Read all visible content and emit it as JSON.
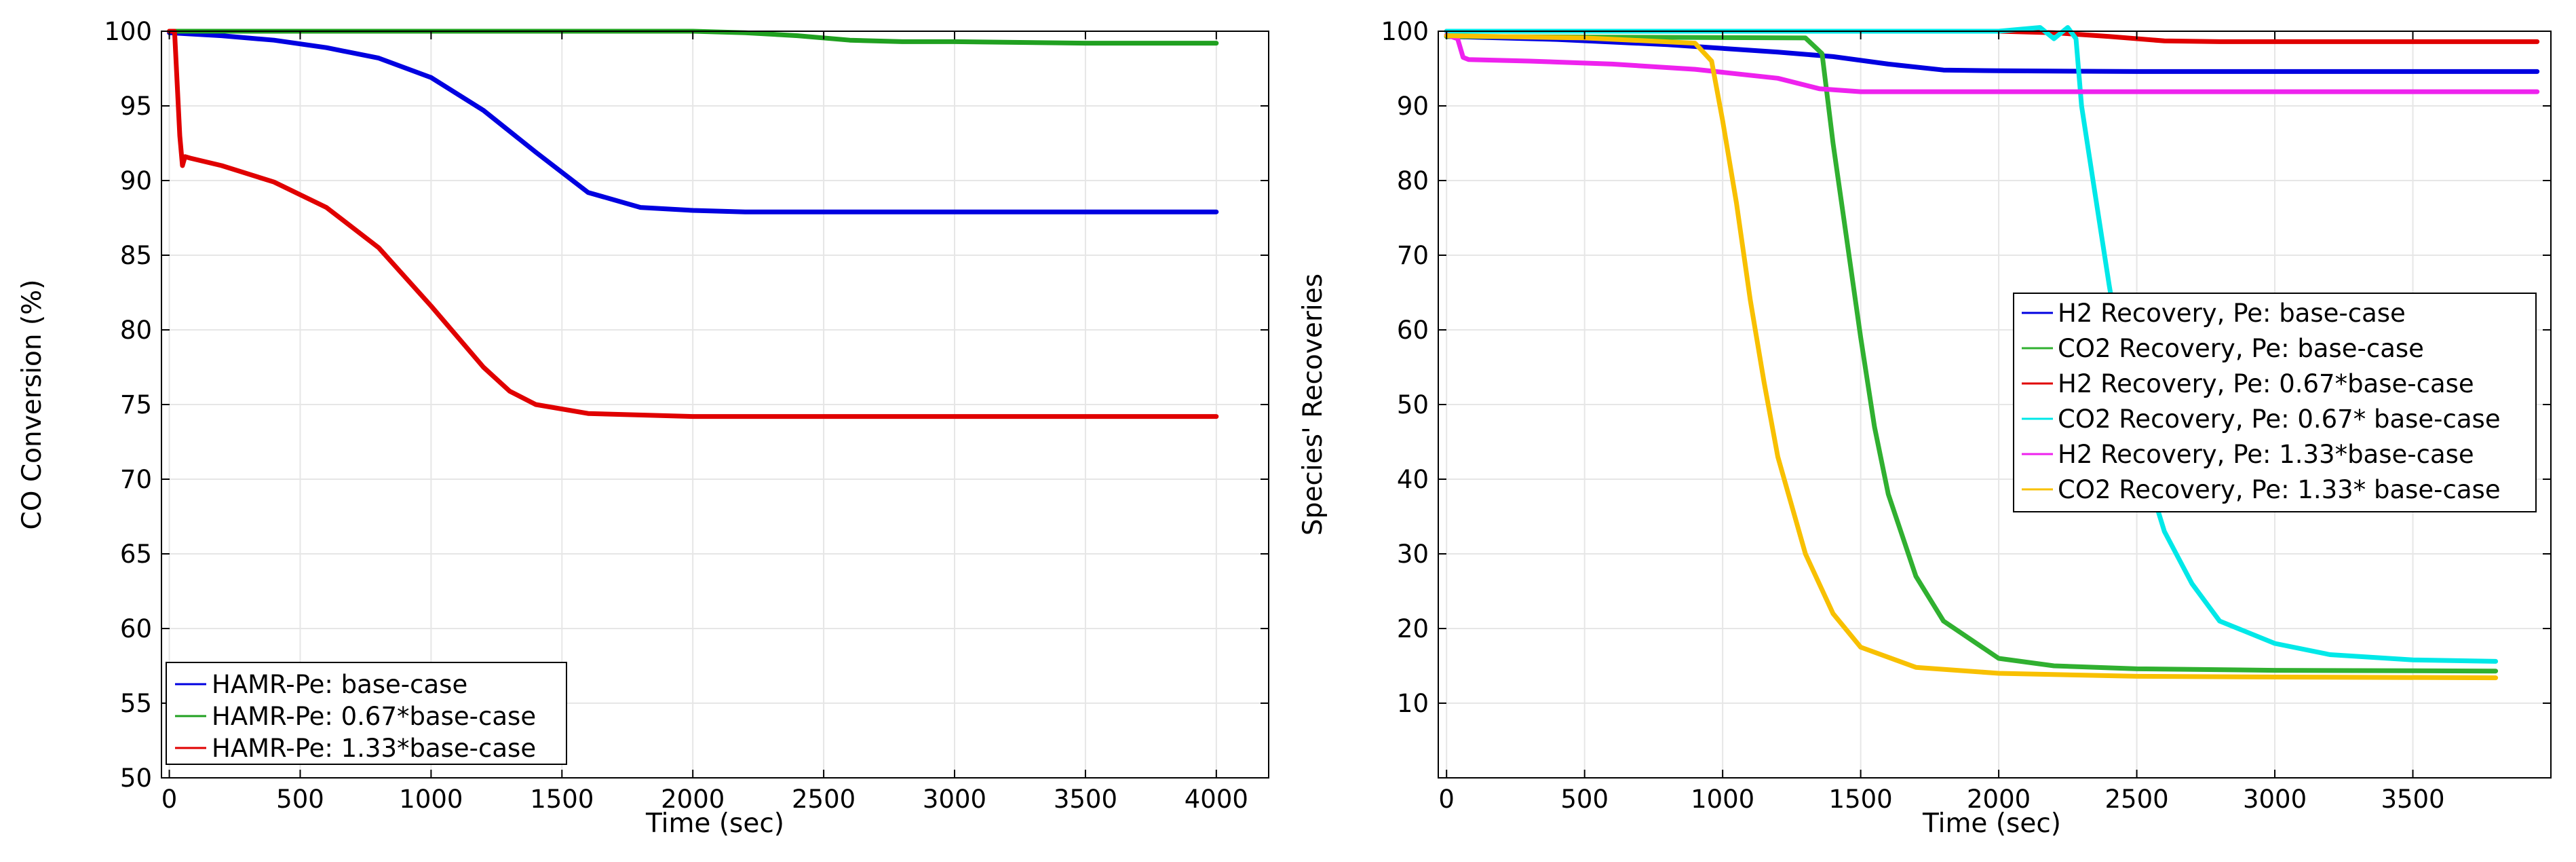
{
  "chart_data": [
    {
      "type": "line",
      "xlabel": "Time (sec)",
      "ylabel": "CO Conversion (%)",
      "xlim": [
        -30,
        4200
      ],
      "ylim": [
        50,
        100
      ],
      "xticks": [
        "0",
        "500",
        "1000",
        "1500",
        "2000",
        "2500",
        "3000",
        "3500",
        "4000"
      ],
      "yticks": [
        "50",
        "55",
        "60",
        "65",
        "70",
        "75",
        "80",
        "85",
        "90",
        "95",
        "100"
      ],
      "grid": true,
      "legend_position": "bottom-left",
      "series": [
        {
          "name": "HAMR-Pe: base-case",
          "color": "#0000e0",
          "x": [
            0,
            200,
            400,
            600,
            800,
            1000,
            1200,
            1400,
            1600,
            1800,
            2000,
            2200,
            2500,
            3000,
            3500,
            4000
          ],
          "y": [
            99.9,
            99.7,
            99.4,
            98.9,
            98.2,
            96.9,
            94.7,
            91.9,
            89.2,
            88.2,
            88.0,
            87.9,
            87.9,
            87.9,
            87.9,
            87.9
          ]
        },
        {
          "name": "HAMR-Pe: 0.67*base-case",
          "color": "#20a020",
          "x": [
            0,
            500,
            1000,
            1500,
            2000,
            2200,
            2400,
            2600,
            2800,
            3000,
            3500,
            4000
          ],
          "y": [
            100,
            100,
            100,
            100,
            100,
            99.9,
            99.7,
            99.4,
            99.3,
            99.3,
            99.2,
            99.2
          ]
        },
        {
          "name": "HAMR-Pe: 1.33*base-case",
          "color": "#e00000",
          "x": [
            0,
            20,
            40,
            50,
            60,
            80,
            200,
            400,
            600,
            800,
            1000,
            1200,
            1300,
            1400,
            1600,
            2000,
            2500,
            3000,
            3500,
            4000
          ],
          "y": [
            100,
            100,
            93,
            91,
            91.6,
            91.5,
            91.0,
            89.9,
            88.2,
            85.5,
            81.6,
            77.5,
            75.9,
            75.0,
            74.4,
            74.2,
            74.2,
            74.2,
            74.2,
            74.2
          ]
        }
      ]
    },
    {
      "type": "line",
      "xlabel": "Time (sec)",
      "ylabel": "Species' Recoveries",
      "xlim": [
        -30,
        4000
      ],
      "ylim": [
        0,
        100
      ],
      "xticks": [
        "0",
        "500",
        "1000",
        "1500",
        "2000",
        "2500",
        "3000",
        "3500"
      ],
      "yticks": [
        "10",
        "20",
        "30",
        "40",
        "50",
        "60",
        "70",
        "80",
        "90",
        "100"
      ],
      "grid": true,
      "legend_position": "center-right",
      "series": [
        {
          "name": "H2 Recovery, Pe: base-case",
          "color": "#0000e0",
          "x": [
            0,
            400,
            800,
            1200,
            1400,
            1600,
            1800,
            2000,
            2500,
            3000,
            3500,
            3950
          ],
          "y": [
            99.3,
            98.9,
            98.2,
            97.2,
            96.6,
            95.6,
            94.8,
            94.7,
            94.6,
            94.6,
            94.6,
            94.6
          ]
        },
        {
          "name": "CO2 Recovery, Pe: base-case",
          "color": "#30b030",
          "x": [
            0,
            1300,
            1360,
            1400,
            1450,
            1500,
            1550,
            1600,
            1700,
            1800,
            2000,
            2200,
            2500,
            3000,
            3800
          ],
          "y": [
            99.3,
            99.1,
            97,
            85,
            72,
            59,
            47,
            38,
            27,
            21,
            16,
            15,
            14.6,
            14.4,
            14.3
          ]
        },
        {
          "name": "H2 Recovery, Pe: 0.67*base-case",
          "color": "#e00000",
          "x": [
            0,
            500,
            1000,
            1500,
            2000,
            2200,
            2400,
            2600,
            2800,
            3000,
            3500,
            3950
          ],
          "y": [
            100,
            100,
            100,
            100,
            100,
            99.8,
            99.3,
            98.7,
            98.6,
            98.6,
            98.6,
            98.6
          ]
        },
        {
          "name": "CO2 Recovery, Pe: 0.67* base-case",
          "color": "#00e8e8",
          "x": [
            0,
            1000,
            2000,
            2150,
            2200,
            2250,
            2280,
            2300,
            2350,
            2400,
            2450,
            2500,
            2600,
            2700,
            2800,
            3000,
            3200,
            3500,
            3800
          ],
          "y": [
            100,
            100,
            100,
            100.5,
            99,
            100.5,
            99,
            90,
            78,
            66,
            55,
            45,
            33,
            26,
            21,
            18,
            16.5,
            15.8,
            15.6
          ]
        },
        {
          "name": "H2 Recovery, Pe: 1.33*base-case",
          "color": "#ee22ee",
          "x": [
            0,
            40,
            60,
            80,
            300,
            600,
            900,
            1200,
            1350,
            1500,
            2000,
            2500,
            3000,
            3500,
            3950
          ],
          "y": [
            99.5,
            99,
            96.5,
            96.2,
            96.0,
            95.6,
            94.9,
            93.7,
            92.3,
            91.9,
            91.9,
            91.9,
            91.9,
            91.9,
            91.9
          ]
        },
        {
          "name": "CO2 Recovery, Pe: 1.33* base-case",
          "color": "#f8c000",
          "x": [
            0,
            500,
            900,
            960,
            1000,
            1050,
            1100,
            1150,
            1200,
            1300,
            1400,
            1500,
            1700,
            2000,
            2500,
            3000,
            3800
          ],
          "y": [
            99.4,
            99.1,
            98.4,
            96,
            88,
            77,
            64,
            53,
            43,
            30,
            22,
            17.5,
            14.8,
            14.0,
            13.6,
            13.5,
            13.4
          ]
        }
      ]
    }
  ]
}
